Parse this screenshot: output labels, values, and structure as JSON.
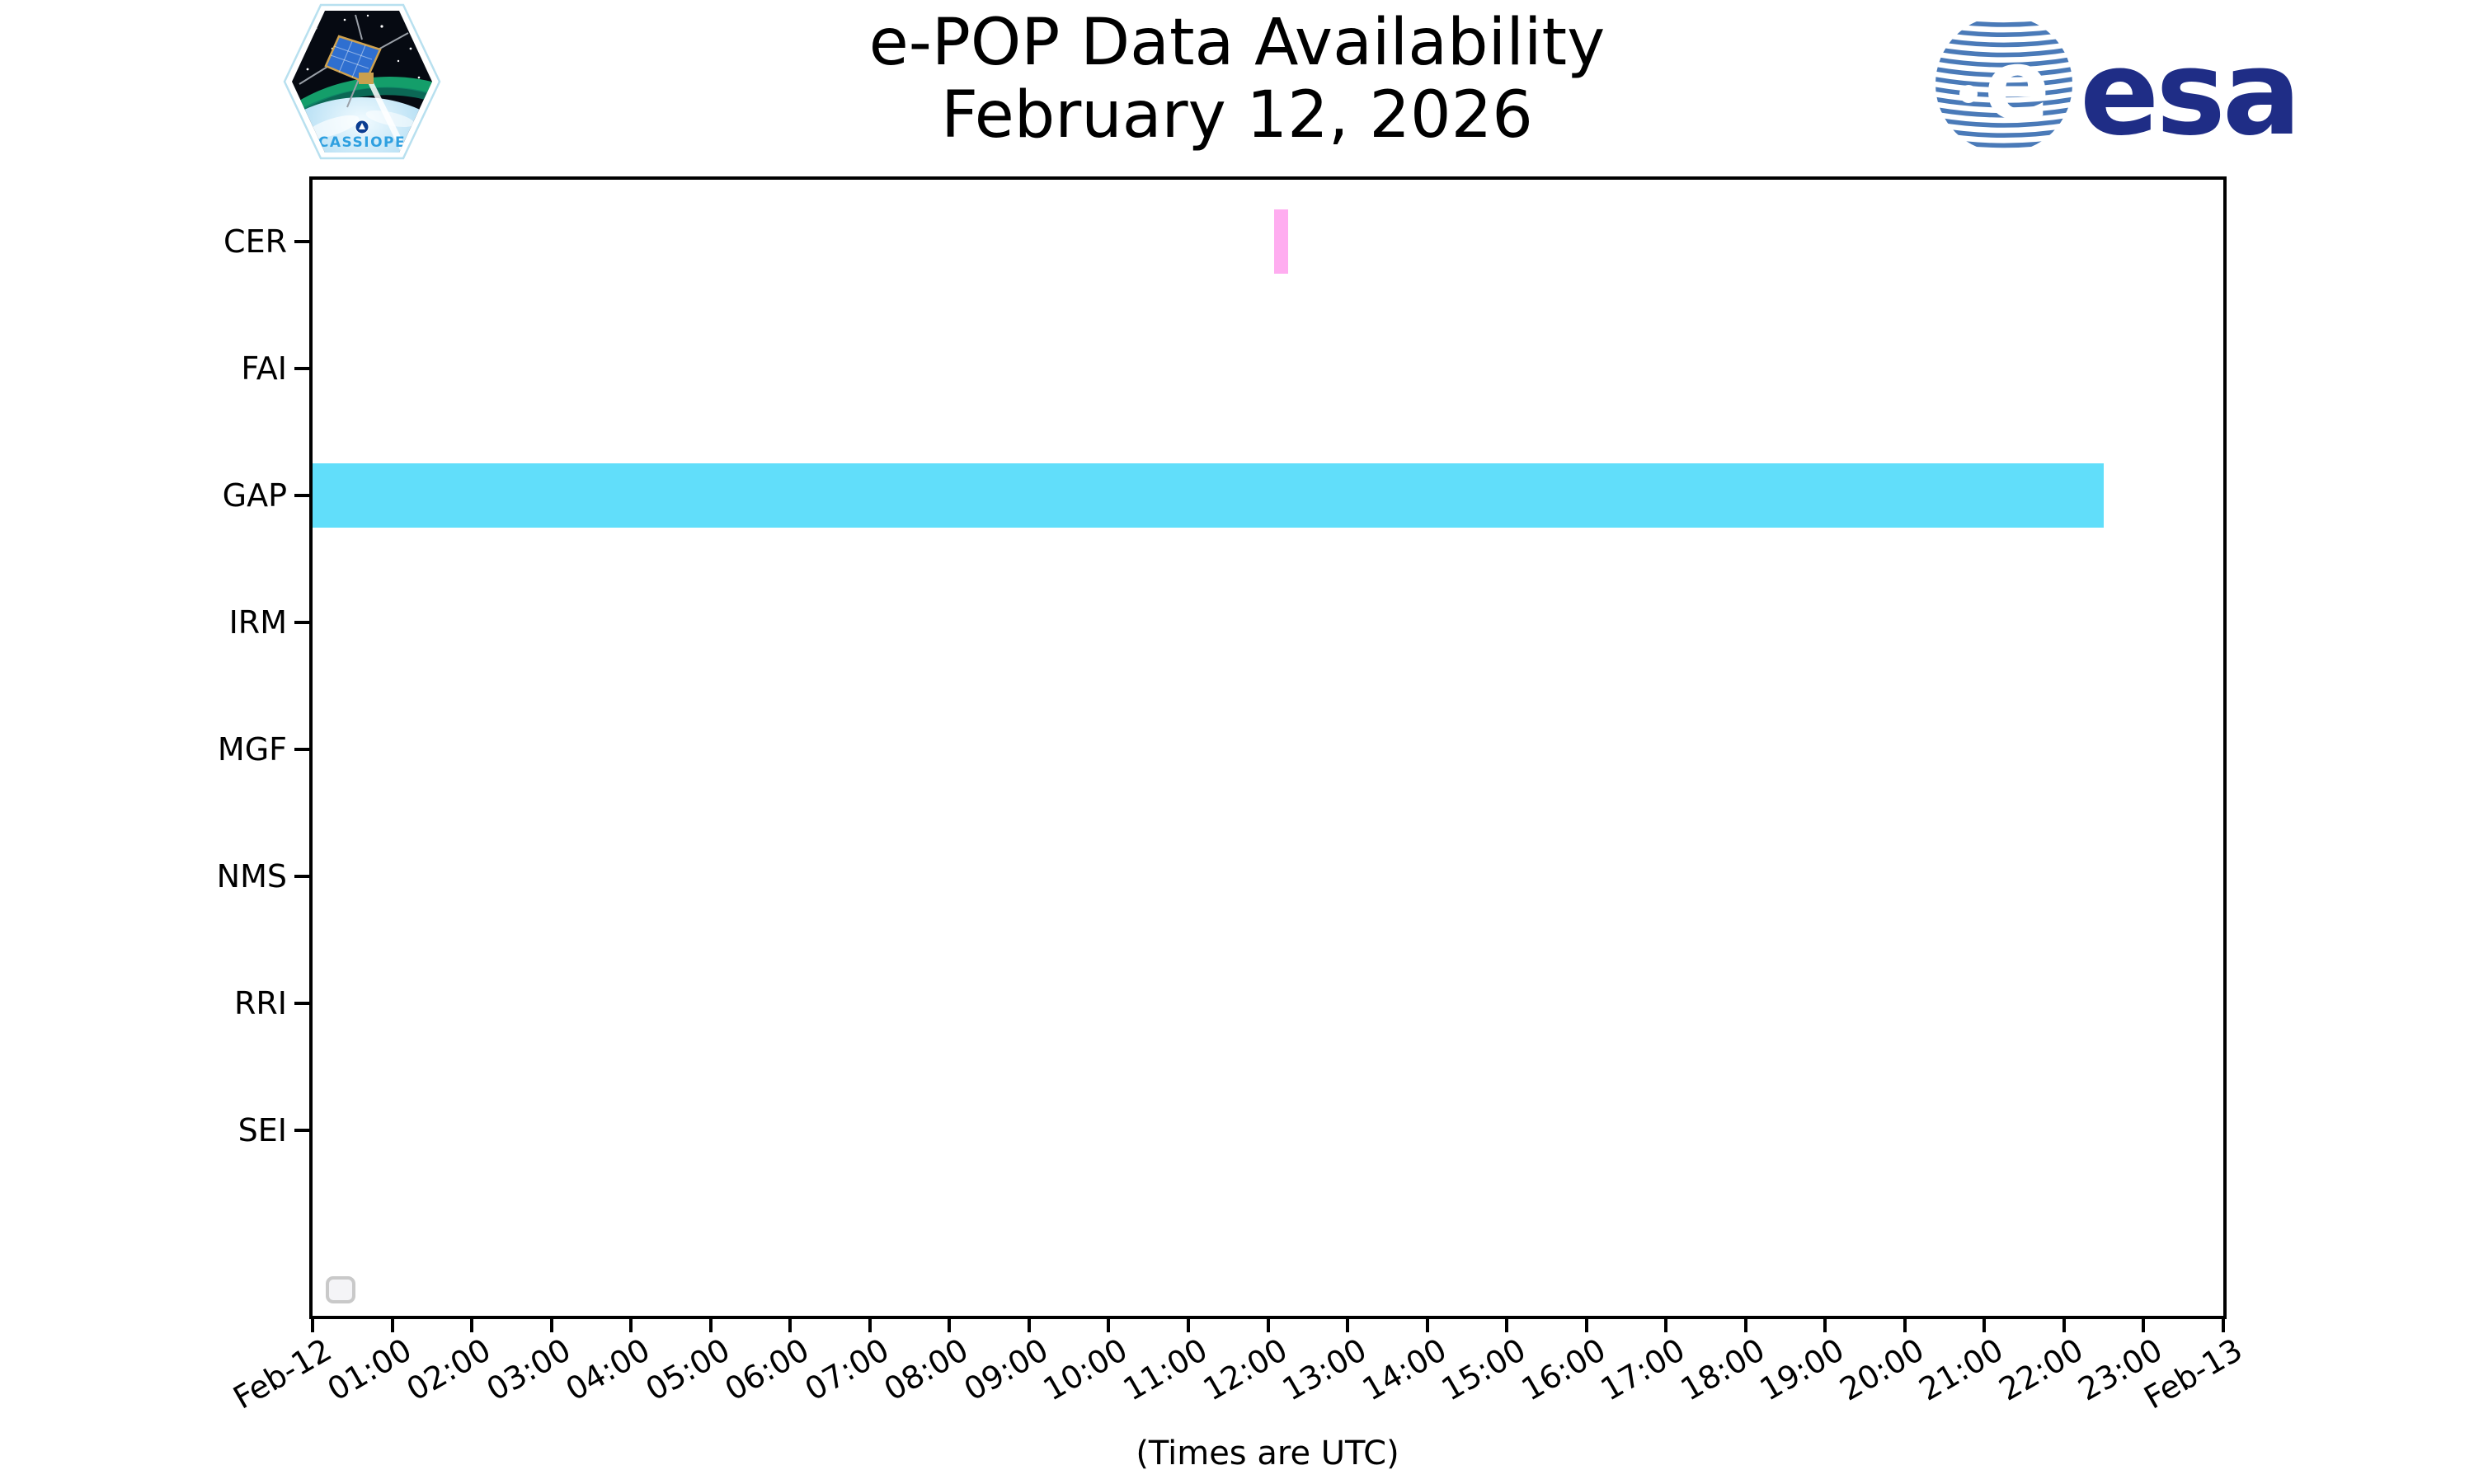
{
  "header": {
    "title": "e-POP Data Availability",
    "subtitle": "February 12, 2026",
    "cassiope_patch": {
      "label": "CASSIOPE"
    },
    "esa_logo": {
      "wordmark": "esa"
    }
  },
  "chart_data": {
    "type": "bar",
    "variant": "horizontal-timeline-availability",
    "title": "e-POP Data Availability",
    "subtitle": "February 12, 2026",
    "xlabel": "(Times are UTC)",
    "x_range_hours": [
      0,
      24
    ],
    "x_ticks": [
      "Feb-12",
      "01:00",
      "02:00",
      "03:00",
      "04:00",
      "05:00",
      "06:00",
      "07:00",
      "08:00",
      "09:00",
      "10:00",
      "11:00",
      "12:00",
      "13:00",
      "14:00",
      "15:00",
      "16:00",
      "17:00",
      "18:00",
      "19:00",
      "20:00",
      "21:00",
      "22:00",
      "23:00",
      "Feb-13"
    ],
    "rows": [
      "CER",
      "FAI",
      "GAP",
      "IRM",
      "MGF",
      "NMS",
      "RRI",
      "SEI"
    ],
    "bars": [
      {
        "row": "CER",
        "start": "12:05",
        "end": "12:15",
        "start_hour": 12.08,
        "end_hour": 12.25,
        "color": "#ffadf0"
      },
      {
        "row": "GAP",
        "start": "00:00",
        "end": "22:30",
        "start_hour": 0,
        "end_hour": 22.5,
        "color": "#61defa"
      }
    ],
    "legend": {
      "visible": true,
      "entries": []
    },
    "grid": false,
    "colors": {
      "cer_bar": "#ffadf0",
      "gap_bar": "#61defa",
      "axis": "#000000",
      "esa_blue": "#1f2d86",
      "esa_globe_stripe": "#4a7ab8"
    }
  }
}
